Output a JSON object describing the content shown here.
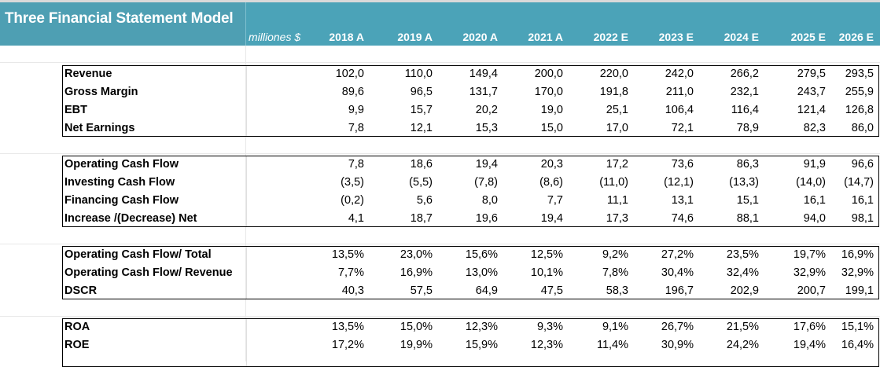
{
  "title": "Three Financial Statement Model",
  "units": "milliones $",
  "years": [
    "2018 A",
    "2019 A",
    "2020 A",
    "2021 A",
    "2022 E",
    "2023 E",
    "2024 E",
    "2025 E",
    "2026 E"
  ],
  "sections": [
    {
      "rows": [
        {
          "label": "Revenue",
          "values": [
            "102,0",
            "110,0",
            "149,4",
            "200,0",
            "220,0",
            "242,0",
            "266,2",
            "279,5",
            "293,5"
          ]
        },
        {
          "label": "Gross Margin",
          "values": [
            "89,6",
            "96,5",
            "131,7",
            "170,0",
            "191,8",
            "211,0",
            "232,1",
            "243,7",
            "255,9"
          ]
        },
        {
          "label": "EBT",
          "values": [
            "9,9",
            "15,7",
            "20,2",
            "19,0",
            "25,1",
            "106,4",
            "116,4",
            "121,4",
            "126,8"
          ]
        },
        {
          "label": "Net Earnings",
          "values": [
            "7,8",
            "12,1",
            "15,3",
            "15,0",
            "17,0",
            "72,1",
            "78,9",
            "82,3",
            "86,0"
          ]
        }
      ]
    },
    {
      "rows": [
        {
          "label": "Operating Cash Flow",
          "values": [
            "7,8",
            "18,6",
            "19,4",
            "20,3",
            "17,2",
            "73,6",
            "86,3",
            "91,9",
            "96,6"
          ]
        },
        {
          "label": "Investing Cash Flow",
          "values": [
            "(3,5)",
            "(5,5)",
            "(7,8)",
            "(8,6)",
            "(11,0)",
            "(12,1)",
            "(13,3)",
            "(14,0)",
            "(14,7)"
          ]
        },
        {
          "label": "Financing Cash Flow",
          "values": [
            "(0,2)",
            "5,6",
            "8,0",
            "7,7",
            "11,1",
            "13,1",
            "15,1",
            "16,1",
            "16,1"
          ]
        },
        {
          "label": "Increase /(Decrease) Net",
          "values": [
            "4,1",
            "18,7",
            "19,6",
            "19,4",
            "17,3",
            "74,6",
            "88,1",
            "94,0",
            "98,1"
          ]
        }
      ]
    },
    {
      "rows": [
        {
          "label": "Operating Cash Flow/ Total",
          "values": [
            "13,5%",
            "23,0%",
            "15,6%",
            "12,5%",
            "9,2%",
            "27,2%",
            "23,5%",
            "19,7%",
            "16,9%"
          ]
        },
        {
          "label": "Operating Cash Flow/ Revenue",
          "values": [
            "7,7%",
            "16,9%",
            "13,0%",
            "10,1%",
            "7,8%",
            "30,4%",
            "32,4%",
            "32,9%",
            "32,9%"
          ]
        },
        {
          "label": "DSCR",
          "values": [
            "40,3",
            "57,5",
            "64,9",
            "47,5",
            "58,3",
            "196,7",
            "202,9",
            "200,7",
            "199,1"
          ]
        }
      ]
    },
    {
      "rows": [
        {
          "label": "ROA",
          "values": [
            "13,5%",
            "15,0%",
            "12,3%",
            "9,3%",
            "9,1%",
            "26,7%",
            "21,5%",
            "17,6%",
            "15,1%"
          ]
        },
        {
          "label": "ROE",
          "values": [
            "17,2%",
            "19,9%",
            "15,9%",
            "12,3%",
            "11,4%",
            "30,9%",
            "24,2%",
            "19,4%",
            "16,4%"
          ]
        }
      ]
    }
  ]
}
